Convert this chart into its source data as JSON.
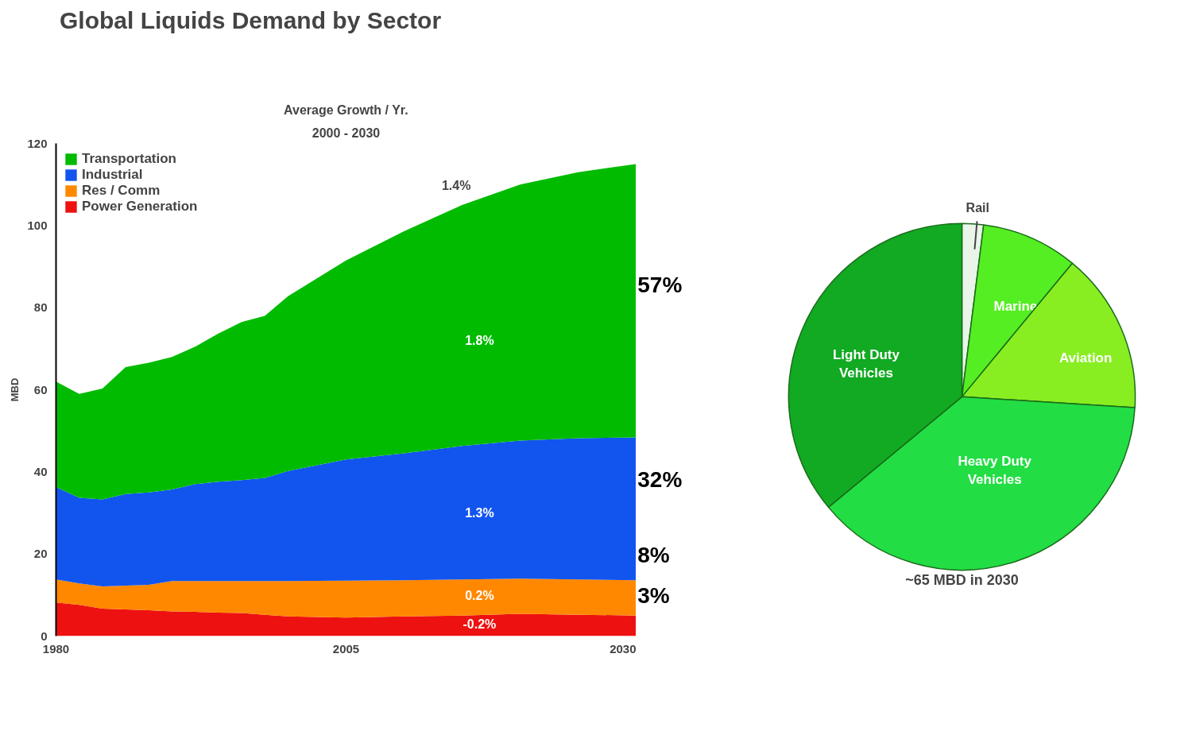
{
  "chart_data": [
    {
      "type": "area",
      "title": "Global Liquids Demand by Sector",
      "ylabel": "MBD",
      "stacked": true,
      "legend": "top left",
      "grid": false,
      "x": [
        1980,
        1982,
        1984,
        1986,
        1988,
        1990,
        1992,
        1994,
        1996,
        1998,
        2000,
        2005,
        2010,
        2015,
        2020,
        2025,
        2030
      ],
      "xlim": [
        1980,
        2030
      ],
      "xticks": [
        1980,
        2005,
        2030
      ],
      "ylim": [
        0,
        120
      ],
      "yticks": [
        0,
        20,
        40,
        60,
        80,
        100,
        120
      ],
      "series": [
        {
          "name": "Power Generation",
          "color": "#ee1111",
          "values": [
            8.2,
            7.6,
            6.7,
            6.5,
            6.3,
            6.0,
            5.9,
            5.7,
            5.6,
            5.2,
            4.8,
            4.5,
            4.8,
            5.0,
            5.4,
            5.2,
            5.0
          ]
        },
        {
          "name": "Res / Comm",
          "color": "#ff8800",
          "values": [
            5.6,
            5.2,
            5.4,
            5.8,
            6.2,
            7.4,
            7.5,
            7.7,
            7.8,
            8.2,
            8.6,
            9.0,
            8.8,
            8.8,
            8.6,
            8.6,
            8.6
          ]
        },
        {
          "name": "Industrial",
          "color": "#1155ee",
          "values": [
            22.5,
            20.9,
            21.2,
            22.3,
            22.5,
            22.3,
            23.6,
            24.2,
            24.6,
            25.1,
            26.8,
            29.5,
            30.9,
            32.5,
            33.6,
            34.4,
            34.8
          ]
        },
        {
          "name": "Transportation",
          "color": "#00bb00",
          "values": [
            25.7,
            25.3,
            27.0,
            30.9,
            31.6,
            32.3,
            33.5,
            36.1,
            38.5,
            39.5,
            42.6,
            48.5,
            54.1,
            58.7,
            62.4,
            64.8,
            66.6
          ]
        }
      ],
      "annotations": [
        "Average Growth / Yr.",
        "2000 - 2030",
        "1.4%",
        "1.8%",
        "1.3%",
        "0.2%",
        "-0.2%",
        "57%",
        "32%",
        "8%",
        "3%"
      ]
    },
    {
      "type": "pie",
      "categories": [
        "Rail",
        "Marine",
        "Aviation",
        "Heavy Duty Vehicles",
        "Light Duty Vehicles"
      ],
      "values": [
        2,
        9,
        15,
        38,
        36
      ],
      "colors": [
        "#e8f5e8",
        "#55ee22",
        "#88ee22",
        "#22dd44",
        "#11aa22"
      ],
      "annotations": [
        "~65 MBD in 2030"
      ]
    }
  ]
}
